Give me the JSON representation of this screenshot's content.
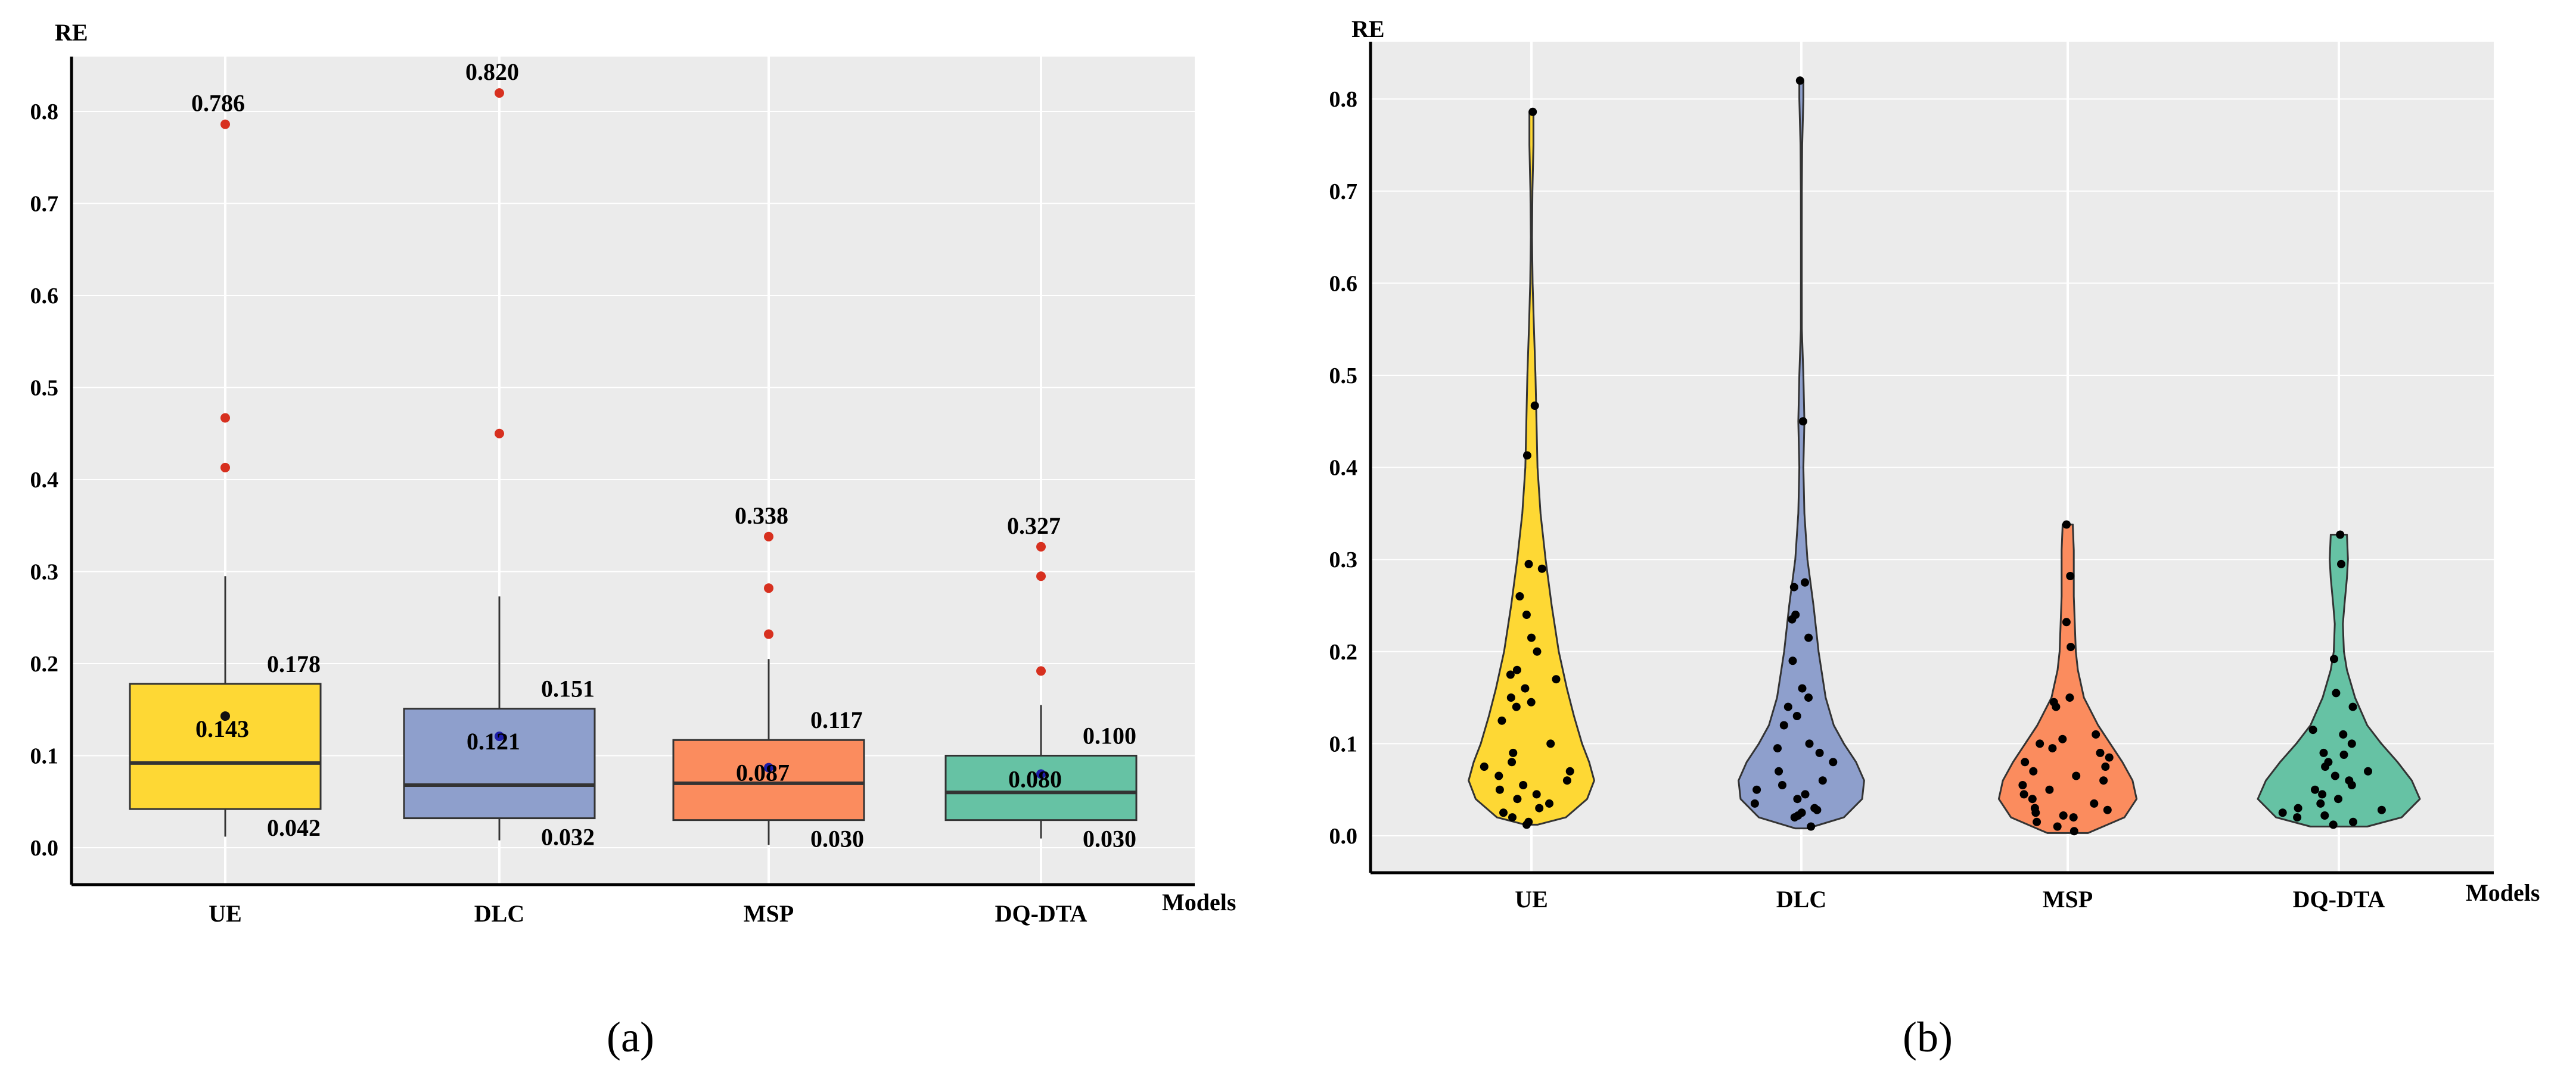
{
  "chart_data": [
    {
      "type": "box",
      "panel_label": "(a)",
      "ylabel": "RE",
      "xlabel": "Models",
      "ylim": [
        -0.04,
        0.86
      ],
      "yticks": [
        "0.0",
        "0.1",
        "0.2",
        "0.3",
        "0.4",
        "0.5",
        "0.6",
        "0.7",
        "0.8"
      ],
      "categories": [
        "UE",
        "DLC",
        "MSP",
        "DQ-DTA"
      ],
      "colors": [
        "#FED834",
        "#8E9FCC",
        "#FB8C5E",
        "#66C2A4"
      ],
      "boxes": [
        {
          "q1": 0.042,
          "median": 0.092,
          "q3": 0.178,
          "whisker_low": 0.012,
          "whisker_high": 0.295,
          "mean": 0.143,
          "mean_color": "#111111",
          "outliers": [
            0.786,
            0.467,
            0.413
          ],
          "labels": {
            "max": "0.786",
            "q3": "0.178",
            "mean": "0.143",
            "q1": "0.042"
          }
        },
        {
          "q1": 0.032,
          "median": 0.068,
          "q3": 0.151,
          "whisker_low": 0.008,
          "whisker_high": 0.273,
          "mean": 0.121,
          "mean_color": "#1E1EAA",
          "outliers": [
            0.82,
            0.45
          ],
          "labels": {
            "max": "0.820",
            "q3": "0.151",
            "mean": "0.121",
            "q1": "0.032"
          }
        },
        {
          "q1": 0.03,
          "median": 0.07,
          "q3": 0.117,
          "whisker_low": 0.003,
          "whisker_high": 0.205,
          "mean": 0.087,
          "mean_color": "#1E1EAA",
          "outliers": [
            0.338,
            0.282,
            0.232
          ],
          "labels": {
            "max": "0.338",
            "q3": "0.117",
            "mean": "0.087",
            "q1": "0.030"
          }
        },
        {
          "q1": 0.03,
          "median": 0.06,
          "q3": 0.1,
          "whisker_low": 0.01,
          "whisker_high": 0.155,
          "mean": 0.08,
          "mean_color": "#1E1EAA",
          "outliers": [
            0.327,
            0.295,
            0.192
          ],
          "labels": {
            "max": "0.327",
            "q3": "0.100",
            "mean": "0.080",
            "q1": "0.030"
          }
        }
      ]
    },
    {
      "type": "violin",
      "panel_label": "(b)",
      "ylabel": "RE",
      "xlabel": "Models",
      "ylim": [
        -0.04,
        0.86
      ],
      "yticks": [
        "0.0",
        "0.1",
        "0.2",
        "0.3",
        "0.4",
        "0.5",
        "0.6",
        "0.7",
        "0.8"
      ],
      "categories": [
        "UE",
        "DLC",
        "MSP",
        "DQ-DTA"
      ],
      "colors": [
        "#FED834",
        "#8E9FCC",
        "#FB8C5E",
        "#66C2A4"
      ],
      "violins": [
        {
          "min": 0.012,
          "max": 0.786,
          "profile": [
            [
              0.012,
              0.06
            ],
            [
              0.02,
              0.34
            ],
            [
              0.04,
              0.55
            ],
            [
              0.06,
              0.62
            ],
            [
              0.08,
              0.57
            ],
            [
              0.1,
              0.5
            ],
            [
              0.13,
              0.42
            ],
            [
              0.16,
              0.35
            ],
            [
              0.2,
              0.27
            ],
            [
              0.25,
              0.2
            ],
            [
              0.3,
              0.14
            ],
            [
              0.35,
              0.09
            ],
            [
              0.4,
              0.06
            ],
            [
              0.45,
              0.05
            ],
            [
              0.5,
              0.04
            ],
            [
              0.55,
              0.025
            ],
            [
              0.6,
              0.012
            ],
            [
              0.65,
              0.006
            ],
            [
              0.7,
              0.01
            ],
            [
              0.75,
              0.02
            ],
            [
              0.786,
              0.02
            ]
          ],
          "points": [
            0.786,
            0.467,
            0.413,
            0.295,
            0.29,
            0.26,
            0.24,
            0.215,
            0.2,
            0.18,
            0.175,
            0.17,
            0.16,
            0.15,
            0.145,
            0.14,
            0.125,
            0.1,
            0.09,
            0.08,
            0.075,
            0.07,
            0.065,
            0.06,
            0.055,
            0.05,
            0.045,
            0.04,
            0.035,
            0.03,
            0.025,
            0.02,
            0.015,
            0.012
          ]
        },
        {
          "min": 0.008,
          "max": 0.82,
          "profile": [
            [
              0.008,
              0.06
            ],
            [
              0.02,
              0.42
            ],
            [
              0.04,
              0.6
            ],
            [
              0.06,
              0.62
            ],
            [
              0.08,
              0.54
            ],
            [
              0.1,
              0.42
            ],
            [
              0.12,
              0.32
            ],
            [
              0.15,
              0.24
            ],
            [
              0.2,
              0.17
            ],
            [
              0.25,
              0.12
            ],
            [
              0.3,
              0.06
            ],
            [
              0.35,
              0.03
            ],
            [
              0.4,
              0.02
            ],
            [
              0.45,
              0.03
            ],
            [
              0.5,
              0.02
            ],
            [
              0.55,
              0.005
            ],
            [
              0.6,
              0.004
            ],
            [
              0.65,
              0.004
            ],
            [
              0.7,
              0.005
            ],
            [
              0.75,
              0.008
            ],
            [
              0.8,
              0.02
            ],
            [
              0.82,
              0.02
            ]
          ],
          "points": [
            0.82,
            0.45,
            0.275,
            0.27,
            0.24,
            0.235,
            0.215,
            0.19,
            0.16,
            0.15,
            0.14,
            0.13,
            0.12,
            0.1,
            0.095,
            0.09,
            0.08,
            0.07,
            0.06,
            0.055,
            0.05,
            0.045,
            0.04,
            0.035,
            0.03,
            0.028,
            0.025,
            0.022,
            0.02,
            0.01
          ]
        },
        {
          "min": 0.003,
          "max": 0.338,
          "profile": [
            [
              0.003,
              0.2
            ],
            [
              0.02,
              0.56
            ],
            [
              0.04,
              0.68
            ],
            [
              0.06,
              0.64
            ],
            [
              0.08,
              0.54
            ],
            [
              0.1,
              0.42
            ],
            [
              0.12,
              0.3
            ],
            [
              0.15,
              0.16
            ],
            [
              0.18,
              0.1
            ],
            [
              0.2,
              0.08
            ],
            [
              0.23,
              0.07
            ],
            [
              0.26,
              0.06
            ],
            [
              0.29,
              0.06
            ],
            [
              0.31,
              0.06
            ],
            [
              0.338,
              0.05
            ]
          ],
          "points": [
            0.338,
            0.282,
            0.232,
            0.205,
            0.15,
            0.145,
            0.14,
            0.11,
            0.105,
            0.1,
            0.095,
            0.09,
            0.085,
            0.08,
            0.075,
            0.07,
            0.065,
            0.06,
            0.055,
            0.05,
            0.045,
            0.04,
            0.035,
            0.03,
            0.028,
            0.025,
            0.022,
            0.02,
            0.015,
            0.01,
            0.005
          ]
        },
        {
          "min": 0.01,
          "max": 0.327,
          "profile": [
            [
              0.01,
              0.28
            ],
            [
              0.02,
              0.62
            ],
            [
              0.04,
              0.8
            ],
            [
              0.06,
              0.72
            ],
            [
              0.08,
              0.58
            ],
            [
              0.1,
              0.42
            ],
            [
              0.12,
              0.28
            ],
            [
              0.15,
              0.16
            ],
            [
              0.18,
              0.08
            ],
            [
              0.2,
              0.05
            ],
            [
              0.23,
              0.04
            ],
            [
              0.25,
              0.055
            ],
            [
              0.28,
              0.08
            ],
            [
              0.3,
              0.09
            ],
            [
              0.327,
              0.08
            ]
          ],
          "points": [
            0.327,
            0.295,
            0.192,
            0.155,
            0.14,
            0.115,
            0.11,
            0.1,
            0.09,
            0.088,
            0.08,
            0.075,
            0.07,
            0.065,
            0.06,
            0.055,
            0.05,
            0.045,
            0.04,
            0.035,
            0.03,
            0.028,
            0.025,
            0.022,
            0.02,
            0.015,
            0.012
          ]
        }
      ]
    }
  ]
}
